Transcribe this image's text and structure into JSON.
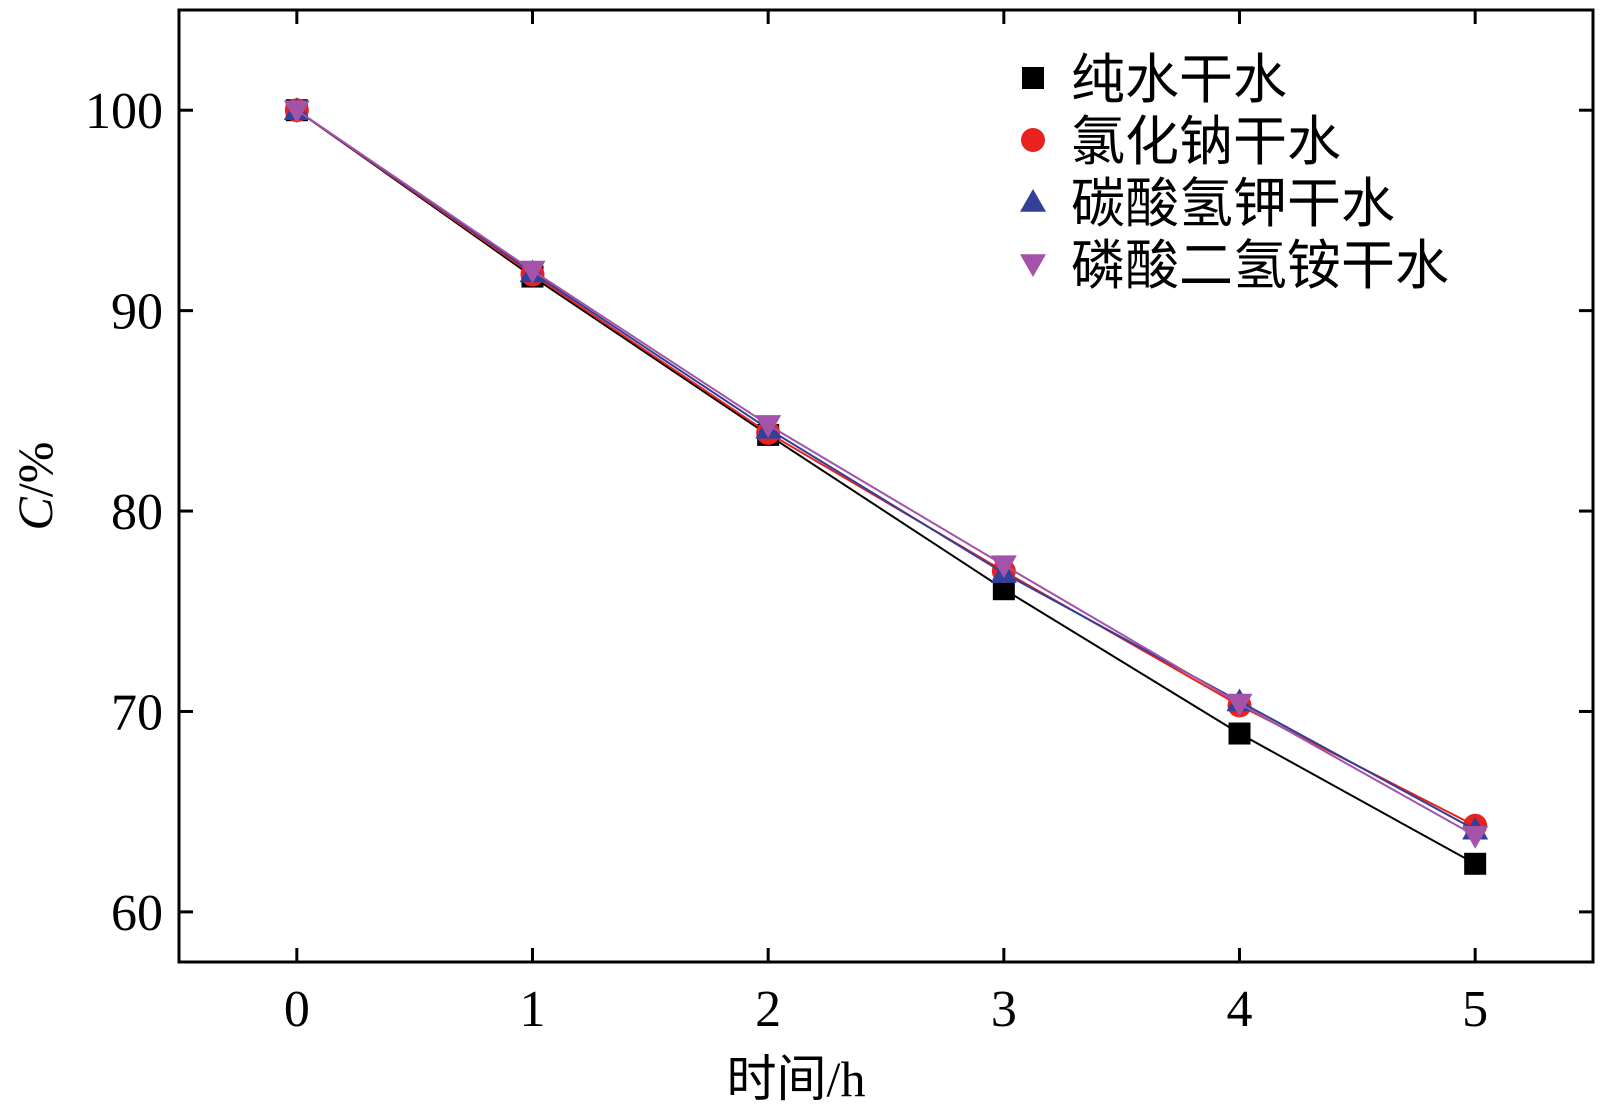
{
  "chart_data": {
    "type": "line",
    "title": "",
    "xlabel": "时间/h",
    "ylabel_italic": "C",
    "ylabel_rest": "/%",
    "xlim": [
      -0.5,
      5.5
    ],
    "ylim": [
      57.5,
      105
    ],
    "x": [
      0,
      1,
      2,
      3,
      4,
      5
    ],
    "x_ticks": [
      "0",
      "1",
      "2",
      "3",
      "4",
      "5"
    ],
    "y_ticks": [
      60,
      70,
      80,
      90,
      100
    ],
    "y_tick_labels": [
      "60",
      "70",
      "80",
      "90",
      "100"
    ],
    "grid": false,
    "legend_position": "top-right",
    "series": [
      {
        "name": "纯水干水",
        "marker": "square",
        "color": "#000000",
        "line_color": "#000000",
        "values": [
          100,
          91.7,
          83.8,
          76.1,
          68.9,
          62.4
        ]
      },
      {
        "name": "氯化钠干水",
        "marker": "circle",
        "color": "#e8231f",
        "line_color": "#e8231f",
        "values": [
          100,
          91.8,
          83.9,
          77.0,
          70.3,
          64.3
        ]
      },
      {
        "name": "碳酸氢钾干水",
        "marker": "triangle-up",
        "color": "#33409a",
        "line_color": "#33409a",
        "values": [
          100,
          91.9,
          84.1,
          76.9,
          70.5,
          64.1
        ]
      },
      {
        "name": "磷酸二氢铵干水",
        "marker": "triangle-down",
        "color": "#a354a8",
        "line_color": "#a354a8",
        "values": [
          100,
          92.0,
          84.3,
          77.3,
          70.4,
          63.8
        ]
      }
    ]
  }
}
